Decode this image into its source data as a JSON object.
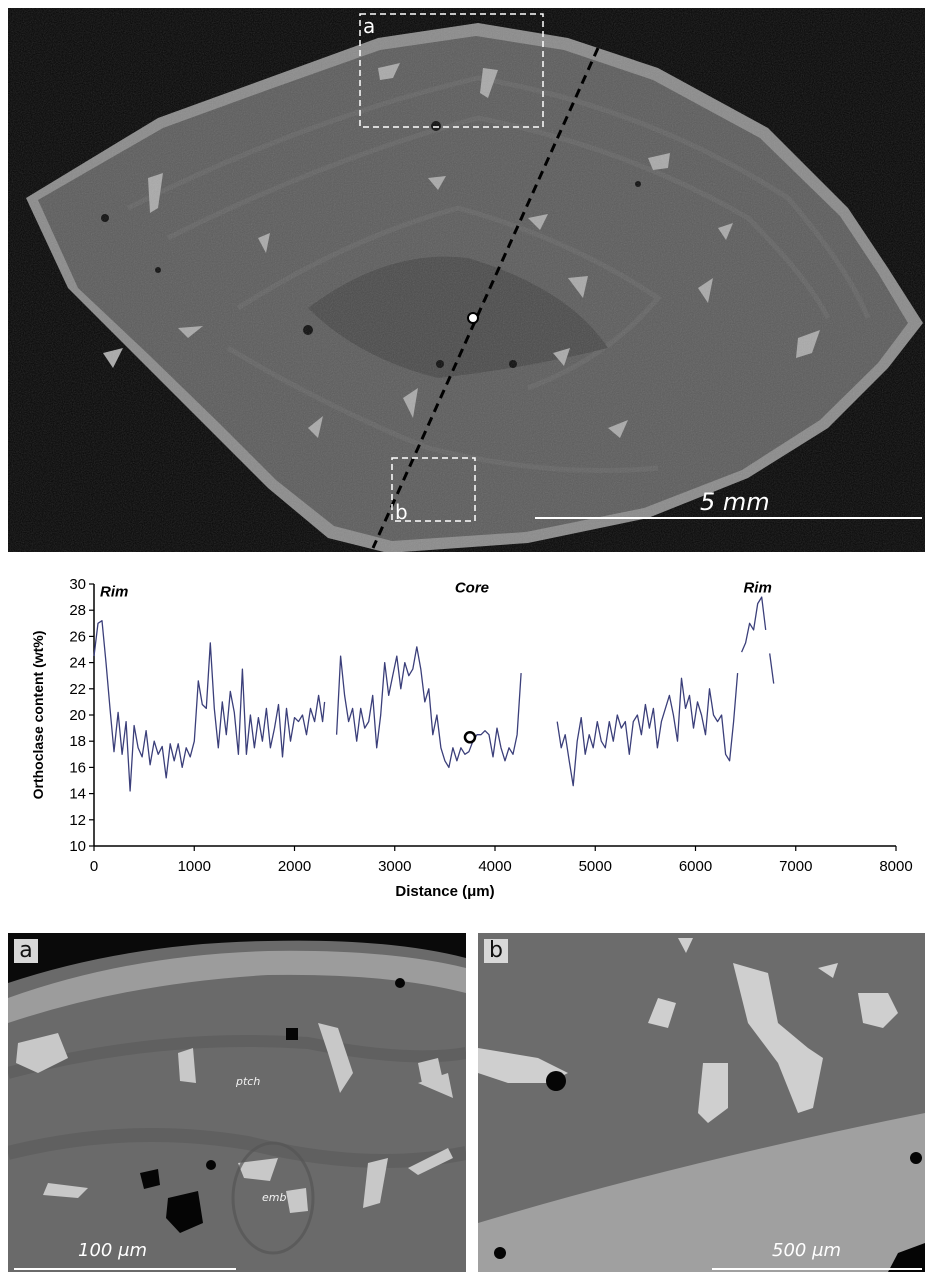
{
  "figure": {
    "top_panel": {
      "scale_bar_label": "5 mm",
      "inset_labels": [
        "a",
        "b"
      ]
    },
    "panel_a": {
      "tag": "a",
      "scale_bar_label": "100 μm",
      "feature_labels": [
        "ptch",
        "emb"
      ]
    },
    "panel_b": {
      "tag": "b",
      "scale_bar_label": "500 μm"
    }
  },
  "chart_data": {
    "type": "line",
    "title": "",
    "xlabel": "Distance (μm)",
    "ylabel": "Orthoclase content (wt%)",
    "xlim": [
      0,
      8000
    ],
    "ylim": [
      10,
      30
    ],
    "xticks": [
      0,
      1000,
      2000,
      3000,
      4000,
      5000,
      6000,
      7000,
      8000
    ],
    "yticks": [
      10,
      12,
      14,
      16,
      18,
      20,
      22,
      24,
      26,
      28,
      30
    ],
    "annotations": [
      {
        "text": "Rim",
        "x": 60,
        "y": 29.5
      },
      {
        "text": "Core",
        "x": 3770,
        "y": 29.8
      },
      {
        "text": "Rim",
        "x": 6620,
        "y": 29.8
      }
    ],
    "core_marker": {
      "x": 3750,
      "y": 18.3
    },
    "line_color": "#3b3f7a",
    "series": [
      {
        "segment": 1,
        "x": [
          0,
          40,
          80,
          120,
          160,
          200,
          240,
          280,
          320,
          360,
          400,
          440,
          480,
          520,
          560,
          600,
          640,
          680,
          720,
          760,
          800,
          840,
          880,
          920,
          960,
          1000,
          1040,
          1080,
          1120,
          1160,
          1200,
          1240,
          1280,
          1320,
          1360,
          1400,
          1440,
          1480,
          1520,
          1560,
          1600,
          1640,
          1680,
          1720,
          1760,
          1800,
          1840,
          1880,
          1920,
          1960,
          2000,
          2040,
          2080,
          2120,
          2160,
          2200,
          2240,
          2280,
          2300
        ],
        "y": [
          24.5,
          27.0,
          27.2,
          24.0,
          20.5,
          17.2,
          20.2,
          17.0,
          19.5,
          14.2,
          19.2,
          17.5,
          16.8,
          18.8,
          16.2,
          18.0,
          17.0,
          17.6,
          15.2,
          17.8,
          16.5,
          17.8,
          16.0,
          17.5,
          16.8,
          18.0,
          22.6,
          20.8,
          20.5,
          25.5,
          20.5,
          17.5,
          21.0,
          18.5,
          21.8,
          20.2,
          17.0,
          23.5,
          17.0,
          20.0,
          17.5,
          19.8,
          18.0,
          20.5,
          17.5,
          19.0,
          20.8,
          16.8,
          20.5,
          18.0,
          19.8,
          19.5,
          20.0,
          18.5,
          20.5,
          19.5,
          21.5,
          19.5,
          21.0
        ]
      },
      {
        "segment": 2,
        "x": [
          2420,
          2460,
          2500,
          2540,
          2580,
          2620,
          2660,
          2700,
          2740,
          2780,
          2820,
          2860,
          2900,
          2940,
          2980,
          3020,
          3060,
          3100,
          3140,
          3180,
          3220,
          3260,
          3300,
          3340,
          3380,
          3420,
          3460,
          3500,
          3540,
          3580,
          3620,
          3660,
          3700,
          3740,
          3780,
          3820,
          3860,
          3900,
          3940,
          3980,
          4020,
          4060,
          4100,
          4140,
          4180,
          4220,
          4260
        ],
        "y": [
          18.5,
          24.5,
          21.5,
          19.5,
          20.5,
          18.0,
          20.5,
          19.0,
          19.5,
          21.5,
          17.5,
          20.0,
          24.0,
          21.5,
          23.0,
          24.5,
          22.0,
          24.0,
          23.0,
          23.5,
          25.2,
          23.5,
          21.0,
          22.0,
          18.5,
          20.0,
          17.5,
          16.5,
          16.0,
          17.5,
          16.5,
          17.5,
          17.0,
          17.2,
          18.0,
          18.5,
          18.5,
          18.8,
          18.5,
          16.8,
          19.0,
          17.5,
          16.5,
          17.5,
          17.0,
          18.5,
          23.2
        ]
      },
      {
        "segment": 3,
        "x": [
          4620,
          4660,
          4700,
          4740,
          4780,
          4820,
          4860,
          4900,
          4940,
          4980,
          5020,
          5060,
          5100,
          5140,
          5180,
          5220,
          5260,
          5300,
          5340,
          5380,
          5420,
          5460,
          5500,
          5540,
          5580,
          5620,
          5660,
          5700,
          5740,
          5780,
          5820,
          5860,
          5900,
          5940,
          5980,
          6020,
          6060,
          6100,
          6140,
          6180,
          6220,
          6260,
          6300,
          6340,
          6380,
          6420
        ],
        "y": [
          19.5,
          17.5,
          18.5,
          16.5,
          14.6,
          18.0,
          19.8,
          17.0,
          18.5,
          17.5,
          19.5,
          18.0,
          17.5,
          19.5,
          18.0,
          20.0,
          19.0,
          19.5,
          17.0,
          19.5,
          20.0,
          18.5,
          20.8,
          19.0,
          20.5,
          17.5,
          19.5,
          20.5,
          21.5,
          20.0,
          18.0,
          22.8,
          20.5,
          21.5,
          19.0,
          21.0,
          20.0,
          18.5,
          22.0,
          20.0,
          19.5,
          20.0,
          17.0,
          16.5,
          19.5,
          23.2
        ]
      },
      {
        "segment": 4,
        "x": [
          6460,
          6500,
          6540,
          6580,
          6620,
          6660,
          6700
        ],
        "y": [
          24.8,
          25.5,
          27.0,
          26.5,
          28.5,
          29.0,
          26.5
        ]
      },
      {
        "segment": 5,
        "x": [
          6740,
          6780
        ],
        "y": [
          24.7,
          22.4
        ]
      }
    ]
  }
}
